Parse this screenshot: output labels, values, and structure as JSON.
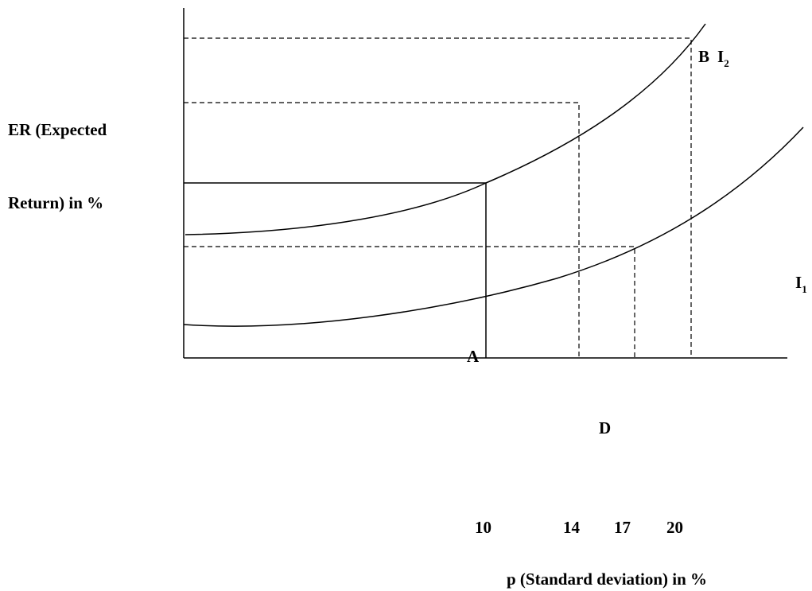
{
  "chart_data": {
    "type": "line",
    "ylabel_line1": "ER (Expected",
    "ylabel_line2": "Return) in %",
    "xlabel": "p (Standard deviation) in %",
    "x_ticks": [
      "10",
      "14",
      "17",
      "20"
    ],
    "point_labels": {
      "A": "A",
      "B": "B",
      "D": "D"
    },
    "curves": [
      {
        "name": "I",
        "subscript": "2"
      },
      {
        "name": "I",
        "subscript": "1"
      }
    ]
  }
}
